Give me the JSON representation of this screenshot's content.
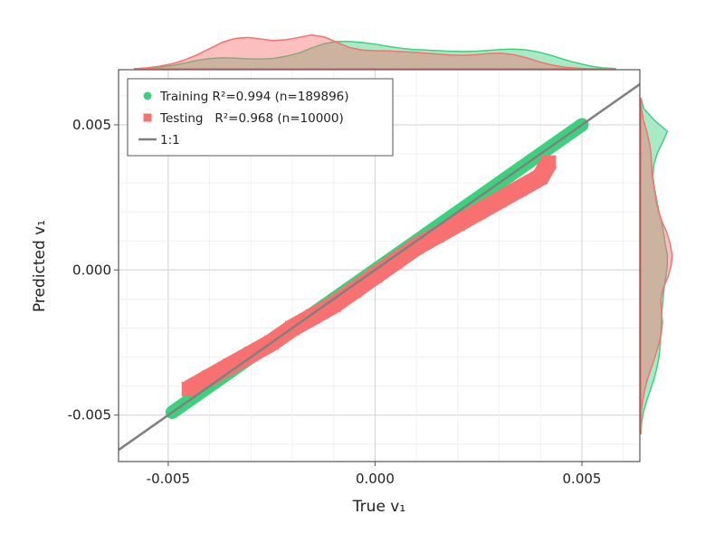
{
  "chart_data": {
    "type": "scatter",
    "xlabel": "True v₁",
    "ylabel": "Predicted v₁",
    "xlim": [
      -0.0062,
      0.0064
    ],
    "ylim": [
      -0.0066,
      0.0069
    ],
    "xticks": [
      -0.005,
      0.0,
      0.005
    ],
    "yticks": [
      -0.005,
      0.0,
      0.005
    ],
    "xtick_labels": [
      "-0.005",
      "0.000",
      "0.005"
    ],
    "ytick_labels": [
      "-0.005",
      "0.000",
      "0.005"
    ],
    "grid": true,
    "legend_placement": "upper-left",
    "reference_line": {
      "label": "1:1",
      "color": "#808080",
      "slope": 1,
      "intercept": 0
    },
    "series": [
      {
        "name": "Training R²=0.994 (n=189896)",
        "marker": "circle",
        "color": "#3dd17f",
        "x": [
          -0.0049,
          -0.0045,
          -0.004,
          -0.0035,
          -0.003,
          -0.0025,
          -0.002,
          -0.0015,
          -0.001,
          -0.0005,
          0.0,
          0.0005,
          0.001,
          0.0015,
          0.002,
          0.0025,
          0.003,
          0.0035,
          0.004,
          0.0045,
          0.005
        ],
        "y": [
          -0.0049,
          -0.0045,
          -0.004,
          -0.0035,
          -0.003,
          -0.0025,
          -0.002,
          -0.0015,
          -0.001,
          -0.0005,
          0.0,
          0.0005,
          0.001,
          0.0015,
          0.002,
          0.0025,
          0.003,
          0.0035,
          0.004,
          0.0045,
          0.005
        ]
      },
      {
        "name": "Testing   R²=0.968 (n=10000)",
        "marker": "square",
        "color": "#f87171",
        "x": [
          -0.0045,
          -0.004,
          -0.0035,
          -0.003,
          -0.0025,
          -0.002,
          -0.0015,
          -0.001,
          -0.0005,
          0.0,
          0.0005,
          0.001,
          0.0015,
          0.002,
          0.0025,
          0.003,
          0.0035,
          0.004,
          0.0042
        ],
        "y": [
          -0.0041,
          -0.0037,
          -0.0033,
          -0.0029,
          -0.0025,
          -0.002,
          -0.0016,
          -0.0012,
          -0.0007,
          -0.0002,
          0.0003,
          0.0008,
          0.0012,
          0.0016,
          0.002,
          0.0024,
          0.0028,
          0.0032,
          0.0037
        ]
      }
    ],
    "marginal_top": {
      "training_density": [
        0.0,
        0.02,
        0.05,
        0.1,
        0.18,
        0.27,
        0.33,
        0.35,
        0.34,
        0.32,
        0.31,
        0.33,
        0.4,
        0.5,
        0.66,
        0.8,
        0.87,
        0.87,
        0.84,
        0.79,
        0.72,
        0.66,
        0.62,
        0.6,
        0.58,
        0.56,
        0.55,
        0.56,
        0.59,
        0.62,
        0.63,
        0.6,
        0.53,
        0.42,
        0.29,
        0.18,
        0.09,
        0.03,
        0.01
      ],
      "testing_density": [
        0.0,
        0.03,
        0.08,
        0.16,
        0.28,
        0.45,
        0.65,
        0.85,
        0.97,
        1.0,
        0.95,
        0.9,
        0.93,
        1.0,
        1.08,
        1.02,
        0.85,
        0.68,
        0.6,
        0.58,
        0.57,
        0.55,
        0.53,
        0.5,
        0.47,
        0.44,
        0.43,
        0.45,
        0.49,
        0.5,
        0.45,
        0.35,
        0.22,
        0.12,
        0.05,
        0.02,
        0.0,
        0.0,
        0.0
      ]
    },
    "marginal_right": {
      "training_density": [
        0.0,
        0.12,
        0.5,
        0.98,
        0.8,
        0.6,
        0.48,
        0.45,
        0.5,
        0.58,
        0.66,
        0.76,
        0.84,
        0.9,
        0.98,
        0.98,
        0.92,
        0.86,
        0.82,
        0.78,
        0.76,
        0.74,
        0.72,
        0.68,
        0.6,
        0.5,
        0.36,
        0.22,
        0.1,
        0.03,
        0.0
      ],
      "testing_density": [
        0.0,
        0.03,
        0.1,
        0.22,
        0.32,
        0.38,
        0.4,
        0.42,
        0.5,
        0.55,
        0.64,
        0.78,
        0.96,
        1.08,
        1.16,
        1.12,
        1.0,
        0.82,
        0.74,
        0.76,
        0.8,
        0.76,
        0.66,
        0.54,
        0.4,
        0.26,
        0.15,
        0.07,
        0.02,
        0.0,
        0.0
      ]
    }
  },
  "legend": {
    "training_label": "Training R²=0.994 (n=189896)",
    "testing_label": "Testing   R²=0.968 (n=10000)",
    "line_label": "1:1"
  },
  "colors": {
    "training": "#3dd17f",
    "testing": "#f87171",
    "overlap_tint": "#c2a090",
    "grid_major": "#d6d6d6",
    "grid_minor": "#eeeeee",
    "axis": "#555555",
    "one_to_one": "#808080"
  }
}
